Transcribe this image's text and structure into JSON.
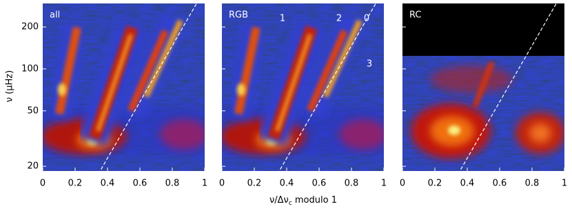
{
  "chart_data": {
    "type": "echelle",
    "panels": [
      {
        "label": "all"
      },
      {
        "label": "RGB",
        "annotations": [
          "1",
          "2",
          "0",
          "3"
        ]
      },
      {
        "label": "RC"
      }
    ],
    "xlim": [
      0,
      1
    ],
    "xticks": [
      0,
      0.2,
      0.4,
      0.6,
      0.8,
      1
    ],
    "ylim": [
      18.5,
      295
    ],
    "yticks": [
      20,
      50,
      100,
      200
    ],
    "ylog": true,
    "x_label": {
      "main": "ν/Δν",
      "sub": "c",
      "rest": " modulo 1"
    },
    "y_label": "ν (μHz)",
    "reference_line": {
      "x": [
        0.36,
        0.95
      ],
      "y": [
        19,
        295
      ],
      "color": "#ffffff",
      "dashed": true
    }
  }
}
